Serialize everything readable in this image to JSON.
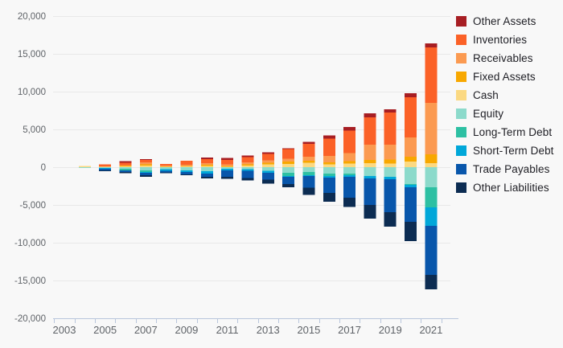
{
  "colors": {
    "background": "#f8f8f8",
    "grid": "#e8e8e8",
    "axis": "#b9c6dc",
    "axis_text": "#5f6368",
    "legend_text": "#1e1e24"
  },
  "legend": {
    "position": "right"
  },
  "chart_data": {
    "type": "bar",
    "subtype": "stacked-diverging",
    "title": "",
    "xlabel": "",
    "ylabel": "",
    "ylim": [
      -20000,
      20000
    ],
    "grid": true,
    "x": [
      2003,
      2004,
      2005,
      2006,
      2007,
      2008,
      2009,
      2010,
      2011,
      2012,
      2013,
      2014,
      2015,
      2016,
      2017,
      2018,
      2019,
      2020,
      2021
    ],
    "x_tick_labels": [
      "2003",
      "2005",
      "2007",
      "2009",
      "2011",
      "2013",
      "2015",
      "2017",
      "2019",
      "2021"
    ],
    "y_ticks": [
      {
        "value": 20000,
        "label": "20,000"
      },
      {
        "value": 15000,
        "label": "15,000"
      },
      {
        "value": 10000,
        "label": "10,000"
      },
      {
        "value": 5000,
        "label": "5,000"
      },
      {
        "value": 0,
        "label": "0"
      },
      {
        "value": -5000,
        "label": "-5,000"
      },
      {
        "value": -10000,
        "label": "-10,000"
      },
      {
        "value": -15000,
        "label": "-15,000"
      },
      {
        "value": -20000,
        "label": "-20,000"
      }
    ],
    "stack_order_positive": [
      "Cash",
      "Fixed Assets",
      "Receivables",
      "Inventories",
      "Other Assets"
    ],
    "stack_order_negative": [
      "Equity",
      "Long-Term Debt",
      "Short-Term Debt",
      "Trade Payables",
      "Other Liabilities"
    ],
    "series": [
      {
        "name": "Other Assets",
        "color": "#a71e23",
        "values": [
          0,
          0,
          0,
          190,
          110,
          0,
          0,
          213,
          245,
          255,
          255,
          100,
          245,
          426,
          470,
          532,
          430,
          532,
          532
        ]
      },
      {
        "name": "Inventories",
        "color": "#fb6127",
        "values": [
          0,
          0,
          230,
          320,
          320,
          210,
          530,
          530,
          565,
          670,
          810,
          1250,
          1704,
          2310,
          2980,
          3618,
          4255,
          5320,
          7340
        ]
      },
      {
        "name": "Receivables",
        "color": "#fb9a51",
        "values": [
          0,
          0,
          60,
          60,
          270,
          110,
          160,
          213,
          213,
          284,
          360,
          394,
          532,
          851,
          1065,
          2021,
          1950,
          2554,
          6810
        ]
      },
      {
        "name": "Fixed Assets",
        "color": "#f8a800",
        "values": [
          0,
          0,
          0,
          90,
          160,
          50,
          50,
          160,
          107,
          142,
          213,
          300,
          284,
          245,
          280,
          426,
          530,
          639,
          1170
        ]
      },
      {
        "name": "Cash",
        "color": "#fbd982",
        "values": [
          0,
          160,
          60,
          120,
          215,
          60,
          110,
          160,
          74,
          213,
          355,
          430,
          568,
          394,
          500,
          532,
          500,
          745,
          530
        ]
      },
      {
        "name": "Equity",
        "color": "#8cdacb",
        "values": [
          0,
          -110,
          -110,
          -210,
          -430,
          -245,
          -426,
          -530,
          -213,
          -284,
          -500,
          -745,
          -640,
          -852,
          -852,
          -1171,
          -1280,
          -2236,
          -2660
        ]
      },
      {
        "name": "Long-Term Debt",
        "color": "#2dc0a3",
        "values": [
          0,
          0,
          0,
          -200,
          -210,
          0,
          0,
          0,
          0,
          0,
          0,
          -400,
          -426,
          -320,
          -213,
          0,
          0,
          -107,
          -2660
        ]
      },
      {
        "name": "Short-Term Debt",
        "color": "#00a7d9",
        "values": [
          0,
          0,
          -110,
          0,
          -110,
          -215,
          -215,
          -320,
          -213,
          -213,
          -250,
          -110,
          -107,
          -213,
          -212,
          -320,
          -320,
          -320,
          -2450
        ]
      },
      {
        "name": "Trade Payables",
        "color": "#0856ab",
        "values": [
          0,
          0,
          -210,
          -220,
          -320,
          -215,
          -320,
          -426,
          -850,
          -920,
          -880,
          -990,
          -1550,
          -2022,
          -2770,
          -3515,
          -4365,
          -4577,
          -6500
        ]
      },
      {
        "name": "Other Liabilities",
        "color": "#0c2c52",
        "values": [
          0,
          0,
          -80,
          -150,
          -210,
          -105,
          -105,
          -213,
          -245,
          -320,
          -530,
          -430,
          -926,
          -1171,
          -1202,
          -1810,
          -1917,
          -2556,
          -1900
        ]
      }
    ]
  }
}
